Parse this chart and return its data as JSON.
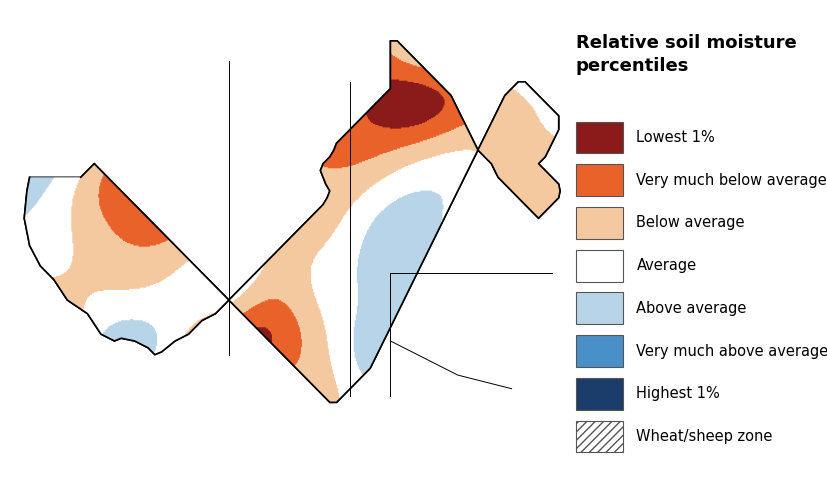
{
  "title": "Relative soil moisture\npercentiles",
  "title_fontsize": 13,
  "legend_items": [
    {
      "label": "Lowest 1%",
      "color": "#8B1A1A",
      "hatch": null
    },
    {
      "label": "Very much below average",
      "color": "#E8622A",
      "hatch": null
    },
    {
      "label": "Below average",
      "color": "#F5C9A0",
      "hatch": null
    },
    {
      "label": "Average",
      "color": "#FFFFFF",
      "hatch": null
    },
    {
      "label": "Above average",
      "color": "#B8D4E8",
      "hatch": null
    },
    {
      "label": "Very much above average",
      "color": "#4A90C8",
      "hatch": null
    },
    {
      "label": "Highest 1%",
      "color": "#1A3D6B",
      "hatch": null
    },
    {
      "label": "Wheat/sheep zone",
      "color": "#FFFFFF",
      "hatch": "////"
    }
  ],
  "legend_fontsize": 10.5,
  "background_color": "#FFFFFF",
  "map_background": "#FFFFFF",
  "border_color": "#000000",
  "fig_width": 8.27,
  "fig_height": 4.91
}
